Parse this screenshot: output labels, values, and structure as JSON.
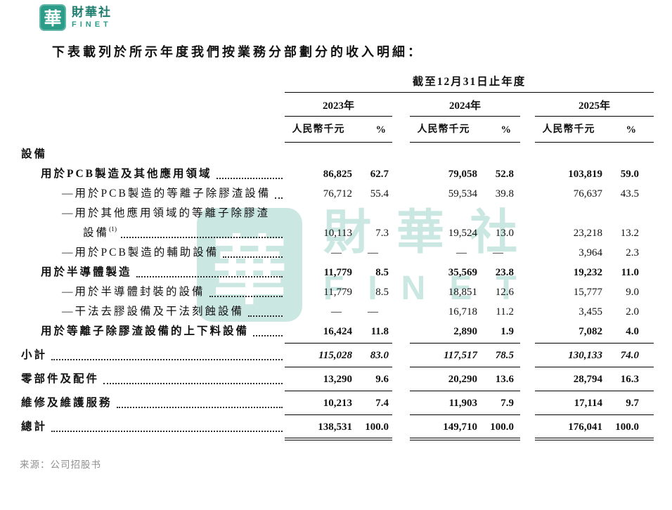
{
  "brand": {
    "logo_char": "華",
    "name_cn": "財華社",
    "name_en": "FINET"
  },
  "intro": "下表載列於所示年度我們按業務分部劃分的收入明細：",
  "table": {
    "period_header": "截至12月31日止年度",
    "years": [
      "2023年",
      "2024年",
      "2025年"
    ],
    "money_header": "人民幣千元",
    "pct_header": "%",
    "rows": [
      {
        "label": "設備"
      },
      {
        "label": "用於PCB製造及其他應用領域",
        "v1": "86,825",
        "p1": "62.7",
        "v2": "79,058",
        "p2": "52.8",
        "v3": "103,819",
        "p3": "59.0"
      },
      {
        "label": "—用於PCB製造的等離子除膠渣設備",
        "v1": "76,712",
        "p1": "55.4",
        "v2": "59,534",
        "p2": "39.8",
        "v3": "76,637",
        "p3": "43.5"
      },
      {
        "label": "—用於其他應用領域的等離子除膠渣"
      },
      {
        "label": "設備",
        "sup": "(1)",
        "v1": "10,113",
        "p1": "7.3",
        "v2": "19,524",
        "p2": "13.0",
        "v3": "23,218",
        "p3": "13.2"
      },
      {
        "label": "—用於PCB製造的輔助設備",
        "v1": "—",
        "p1": "—",
        "v2": "—",
        "p2": "—",
        "v3": "3,964",
        "p3": "2.3"
      },
      {
        "label": "用於半導體製造",
        "v1": "11,779",
        "p1": "8.5",
        "v2": "35,569",
        "p2": "23.8",
        "v3": "19,232",
        "p3": "11.0"
      },
      {
        "label": "—用於半導體封裝的設備",
        "v1": "11,779",
        "p1": "8.5",
        "v2": "18,851",
        "p2": "12.6",
        "v3": "15,777",
        "p3": "9.0"
      },
      {
        "label": "—干法去膠設備及干法刻蝕設備",
        "v1": "—",
        "p1": "—",
        "v2": "16,718",
        "p2": "11.2",
        "v3": "3,455",
        "p3": "2.0"
      },
      {
        "label": "用於等離子除膠渣設備的上下料設備",
        "v1": "16,424",
        "p1": "11.8",
        "v2": "2,890",
        "p2": "1.9",
        "v3": "7,082",
        "p3": "4.0"
      },
      {
        "label": "小計",
        "v1": "115,028",
        "p1": "83.0",
        "v2": "117,517",
        "p2": "78.5",
        "v3": "130,133",
        "p3": "74.0"
      },
      {
        "label": "零部件及配件",
        "v1": "13,290",
        "p1": "9.6",
        "v2": "20,290",
        "p2": "13.6",
        "v3": "28,794",
        "p3": "16.3"
      },
      {
        "label": "維修及維護服務",
        "v1": "10,213",
        "p1": "7.4",
        "v2": "11,903",
        "p2": "7.9",
        "v3": "17,114",
        "p3": "9.7"
      },
      {
        "label": "總計",
        "v1": "138,531",
        "p1": "100.0",
        "v2": "149,710",
        "p2": "100.0",
        "v3": "176,041",
        "p3": "100.0"
      }
    ]
  },
  "source": "来源：公司招股书",
  "watermark": {
    "logo_char": "華",
    "name_cn": "財華社",
    "name_en": "FINET"
  }
}
